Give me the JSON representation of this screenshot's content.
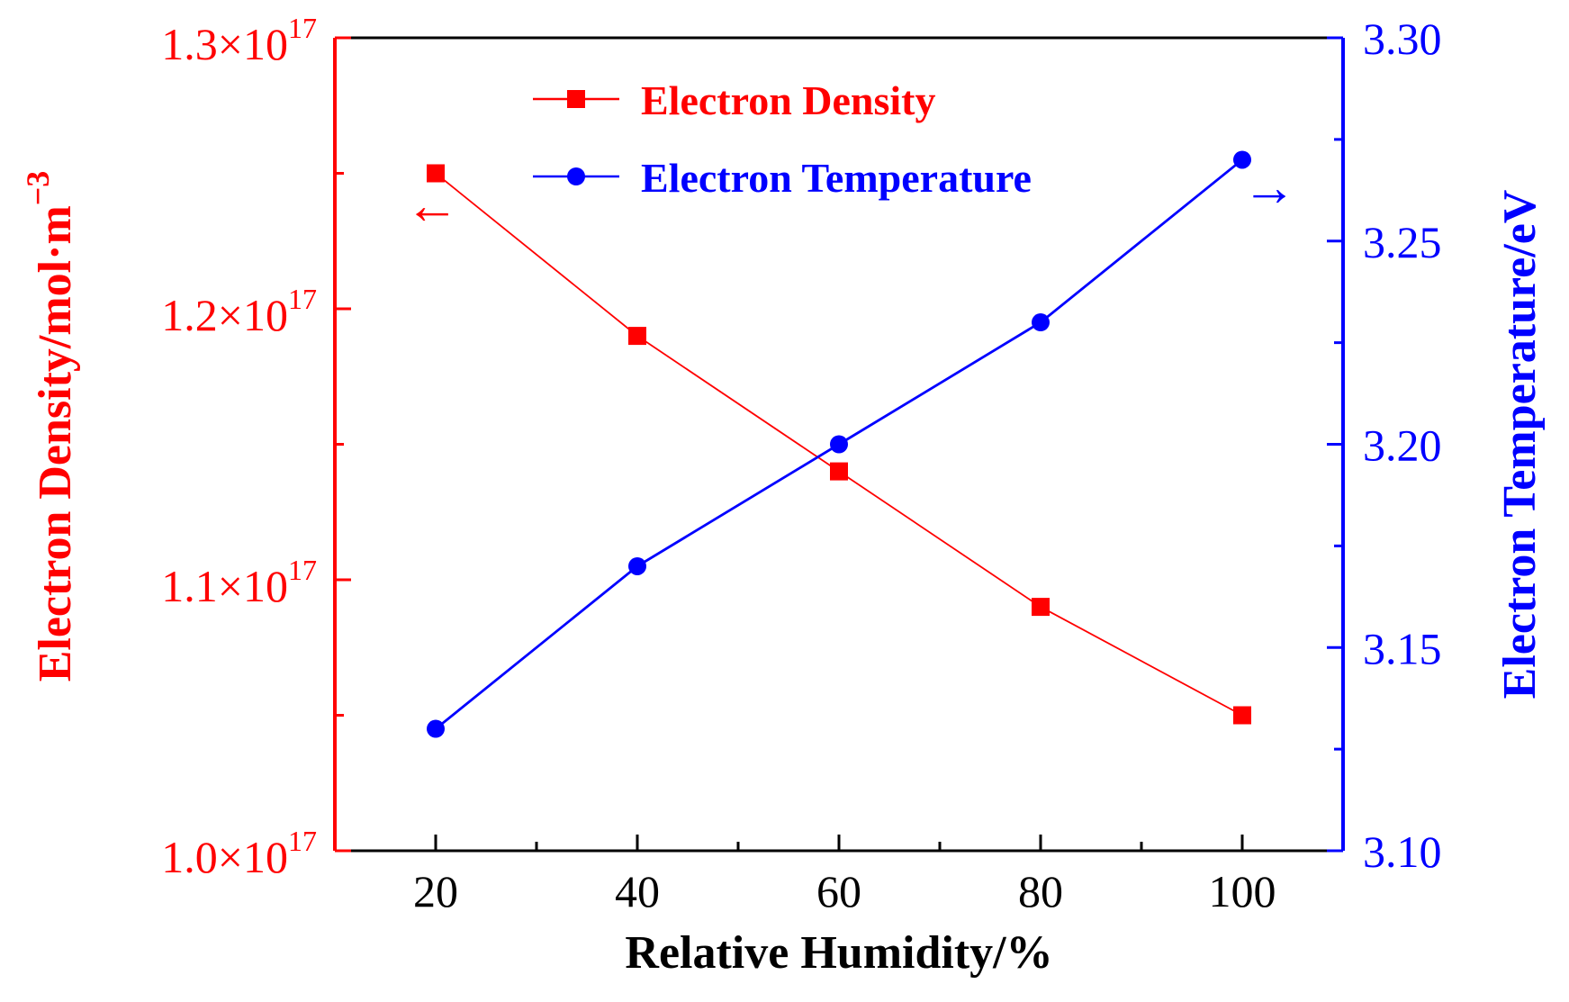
{
  "chart_data": {
    "type": "line",
    "x": [
      20,
      40,
      60,
      80,
      100
    ],
    "xlabel": "Relative Humidity/%",
    "xlim": [
      10,
      110
    ],
    "x_ticks": [
      20,
      40,
      60,
      80,
      100
    ],
    "x_tick_labels": [
      "20",
      "40",
      "60",
      "80",
      "100"
    ],
    "series": [
      {
        "name": "Electron Density",
        "axis": "left",
        "color": "#ff0000",
        "marker": "square",
        "values": [
          1.25e+17,
          1.19e+17,
          1.14e+17,
          1.09e+17,
          1.05e+17
        ]
      },
      {
        "name": "Electron Temperature",
        "axis": "right",
        "color": "#0000ff",
        "marker": "circle",
        "values": [
          3.13,
          3.17,
          3.2,
          3.23,
          3.27
        ]
      }
    ],
    "left_axis": {
      "label_main": "Electron Density/mol·m",
      "label_sup": "−3",
      "ylim": [
        1e+17,
        1.3e+17
      ],
      "ticks": [
        1e+17,
        1.1e+17,
        1.2e+17,
        1.3e+17
      ],
      "tick_mantissa": [
        "1.0×10",
        "1.1×10",
        "1.2×10",
        "1.3×10"
      ],
      "tick_exponent": "17",
      "color": "#ff0000"
    },
    "right_axis": {
      "label": "Electron Temperature/eV",
      "ylim": [
        3.1,
        3.3
      ],
      "ticks": [
        3.1,
        3.15,
        3.2,
        3.25,
        3.3
      ],
      "tick_labels": [
        "3.10",
        "3.15",
        "3.20",
        "3.25",
        "3.30"
      ],
      "color": "#0000ff"
    },
    "annotations": [
      {
        "text": "←",
        "meaning": "Electron Density uses left axis",
        "color": "#ff0000"
      },
      {
        "text": "→",
        "meaning": "Electron Temperature uses right axis",
        "color": "#0000ff"
      }
    ],
    "legend_position": "top-center"
  }
}
